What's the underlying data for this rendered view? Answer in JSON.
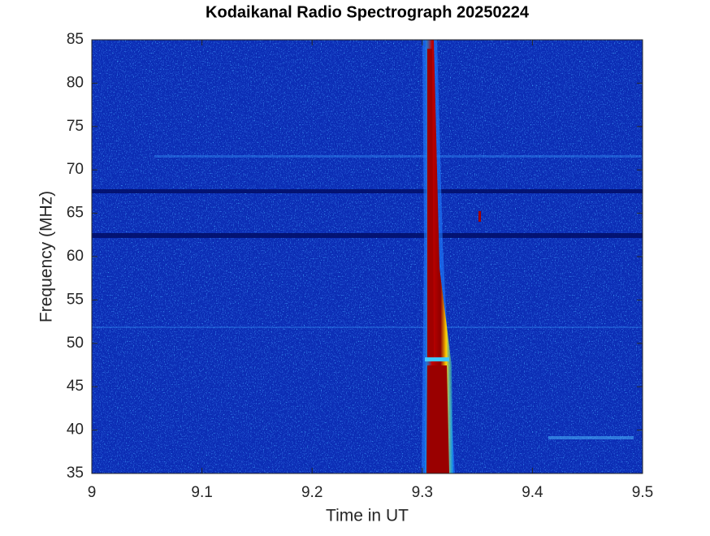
{
  "chart_data": {
    "type": "spectrogram",
    "title": "Kodaikanal Radio Spectrograph  20250224",
    "x_label": "Time in UT",
    "y_label": "Frequency (MHz)",
    "xlim": [
      9,
      9.5
    ],
    "xticks": [
      9,
      9.1,
      9.2,
      9.3,
      9.4,
      9.5
    ],
    "ylim": [
      35,
      85
    ],
    "yticks": [
      35,
      40,
      45,
      50,
      55,
      60,
      65,
      70,
      75,
      80,
      85
    ]
  }
}
